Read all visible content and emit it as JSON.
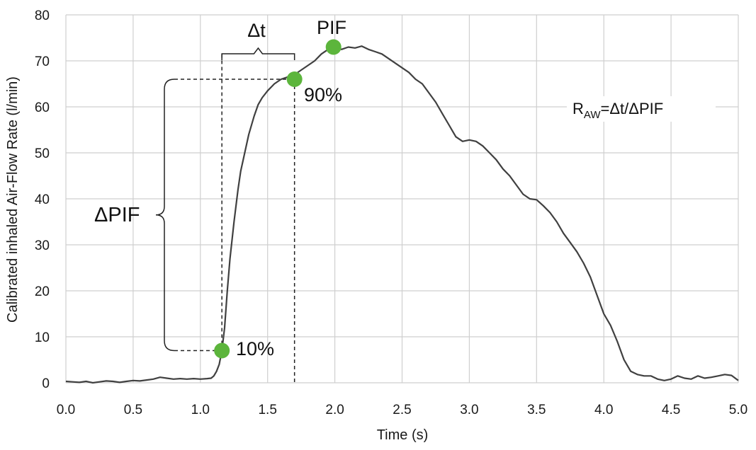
{
  "chart_data": {
    "type": "line",
    "title": "",
    "xlabel": "Time (s)",
    "ylabel": "Calibrated inhaled Air-Flow Rate (l/min)",
    "xlim": [
      0.0,
      5.0
    ],
    "ylim": [
      0,
      80
    ],
    "x_ticks": [
      0.0,
      0.5,
      1.0,
      1.5,
      2.0,
      2.5,
      3.0,
      3.5,
      4.0,
      4.5,
      5.0
    ],
    "x_tick_labels": [
      "0.0",
      "0.5",
      "1.0",
      "1.5",
      "2.0",
      "2.5",
      "3.0",
      "3.5",
      "4.0",
      "4.5",
      "5.0"
    ],
    "y_ticks": [
      0,
      10,
      20,
      30,
      40,
      50,
      60,
      70,
      80
    ],
    "y_tick_labels": [
      "0",
      "10",
      "20",
      "30",
      "40",
      "50",
      "60",
      "70",
      "80"
    ],
    "grid": true,
    "series": [
      {
        "name": "Inhaled air-flow profile",
        "color": "#404040",
        "x": [
          0.0,
          0.05,
          0.1,
          0.15,
          0.2,
          0.25,
          0.3,
          0.35,
          0.4,
          0.45,
          0.5,
          0.55,
          0.6,
          0.65,
          0.7,
          0.75,
          0.8,
          0.85,
          0.9,
          0.95,
          1.0,
          1.05,
          1.08,
          1.1,
          1.12,
          1.14,
          1.16,
          1.18,
          1.2,
          1.22,
          1.25,
          1.28,
          1.3,
          1.33,
          1.36,
          1.4,
          1.43,
          1.46,
          1.5,
          1.55,
          1.6,
          1.65,
          1.7,
          1.75,
          1.8,
          1.85,
          1.9,
          1.95,
          2.0,
          2.05,
          2.1,
          2.15,
          2.2,
          2.25,
          2.3,
          2.35,
          2.4,
          2.45,
          2.5,
          2.55,
          2.6,
          2.65,
          2.7,
          2.75,
          2.8,
          2.85,
          2.9,
          2.95,
          3.0,
          3.05,
          3.1,
          3.15,
          3.2,
          3.25,
          3.3,
          3.35,
          3.4,
          3.45,
          3.5,
          3.55,
          3.6,
          3.65,
          3.7,
          3.75,
          3.8,
          3.85,
          3.9,
          3.95,
          4.0,
          4.05,
          4.1,
          4.15,
          4.2,
          4.25,
          4.3,
          4.35,
          4.4,
          4.45,
          4.5,
          4.55,
          4.6,
          4.65,
          4.7,
          4.75,
          4.8,
          4.85,
          4.9,
          4.95,
          5.0
        ],
        "y": [
          0.3,
          0.2,
          0.1,
          0.3,
          0.0,
          0.2,
          0.4,
          0.3,
          0.1,
          0.3,
          0.5,
          0.4,
          0.6,
          0.8,
          1.2,
          1.0,
          0.8,
          0.9,
          0.8,
          0.9,
          0.8,
          0.9,
          1.0,
          1.5,
          2.5,
          4.0,
          7.0,
          12.0,
          20.0,
          27.0,
          35.0,
          42.0,
          46.0,
          50.0,
          54.0,
          58.0,
          60.5,
          62.0,
          63.5,
          65.0,
          66.0,
          66.5,
          67.0,
          68.0,
          69.0,
          70.0,
          71.5,
          72.5,
          73.0,
          72.5,
          73.0,
          72.8,
          73.2,
          72.5,
          72.0,
          71.5,
          70.5,
          69.5,
          68.5,
          67.5,
          66.0,
          65.0,
          63.0,
          61.0,
          58.5,
          56.0,
          53.5,
          52.5,
          52.8,
          52.5,
          51.5,
          50.0,
          48.5,
          46.5,
          45.0,
          43.0,
          41.0,
          40.0,
          39.8,
          38.5,
          37.0,
          35.0,
          32.5,
          30.5,
          28.5,
          26.0,
          23.0,
          19.0,
          15.0,
          12.5,
          9.0,
          5.0,
          2.5,
          1.8,
          1.5,
          1.5,
          0.8,
          0.5,
          0.8,
          1.5,
          1.0,
          0.8,
          1.5,
          1.0,
          1.2,
          1.5,
          1.8,
          1.6,
          0.5
        ]
      }
    ],
    "markers": [
      {
        "name": "10%",
        "x": 1.16,
        "y": 7,
        "color": "#5cb53c"
      },
      {
        "name": "90%",
        "x": 1.7,
        "y": 66,
        "color": "#5cb53c"
      },
      {
        "name": "PIF",
        "x": 1.99,
        "y": 73,
        "color": "#5cb53c"
      }
    ],
    "annotations": {
      "pif_label": "PIF",
      "p10_label": "10%",
      "p90_label": "90%",
      "delta_t_label": "Δt",
      "delta_pif_label": "ΔPIF",
      "formula_r": "R",
      "formula_sub": "AW",
      "formula_rest": "=Δt/ΔPIF"
    }
  }
}
